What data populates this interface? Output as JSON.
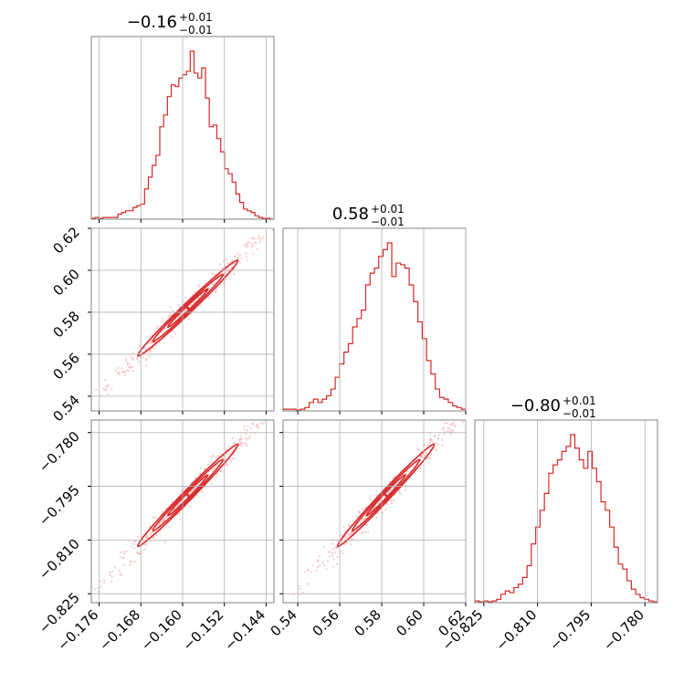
{
  "colors": {
    "series": "#d62728",
    "scatter": "#f4a3a4",
    "grid": "#b0b0b0",
    "frame": "#808080"
  },
  "chart_data": {
    "type": "corner",
    "grid": true,
    "parameters": [
      {
        "range": [
          -0.1775,
          -0.1425
        ],
        "ticks": [
          -0.176,
          -0.168,
          -0.16,
          -0.152,
          -0.144
        ],
        "tick_labels": [
          "−0.176",
          "−0.168",
          "−0.160",
          "−0.152",
          "−0.144"
        ],
        "title": {
          "main": "−0.16",
          "upper": "+0.01",
          "lower": "−0.01"
        }
      },
      {
        "range": [
          0.533,
          0.62
        ],
        "ticks": [
          0.54,
          0.56,
          0.58,
          0.6,
          0.62
        ],
        "tick_labels": [
          "0.54",
          "0.56",
          "0.58",
          "0.60",
          "0.62"
        ],
        "title": {
          "main": "0.58",
          "upper": "+0.01",
          "lower": "−0.01"
        }
      },
      {
        "range": [
          -0.8275,
          -0.7765
        ],
        "ticks": [
          -0.825,
          -0.81,
          -0.795,
          -0.78
        ],
        "tick_labels": [
          "−0.825",
          "−0.810",
          "−0.795",
          "−0.780"
        ],
        "title": {
          "main": "−0.80",
          "upper": "+0.01",
          "lower": "−0.01"
        }
      }
    ],
    "histograms": [
      [
        0.005,
        0.01,
        0.005,
        0.01,
        0.01,
        0.01,
        0.01,
        0.03,
        0.04,
        0.05,
        0.05,
        0.07,
        0.08,
        0.09,
        0.18,
        0.25,
        0.32,
        0.38,
        0.55,
        0.62,
        0.73,
        0.8,
        0.79,
        0.84,
        0.86,
        0.88,
        1.0,
        0.87,
        0.84,
        0.9,
        0.72,
        0.55,
        0.56,
        0.48,
        0.4,
        0.3,
        0.27,
        0.22,
        0.15,
        0.1,
        0.06,
        0.05,
        0.04,
        0.02,
        0.01,
        0.005,
        0.005,
        0.0
      ],
      [
        0.01,
        0.01,
        0.01,
        0.005,
        0.01,
        0.02,
        0.05,
        0.07,
        0.05,
        0.07,
        0.09,
        0.13,
        0.2,
        0.28,
        0.35,
        0.4,
        0.5,
        0.55,
        0.6,
        0.75,
        0.82,
        0.85,
        0.92,
        0.96,
        1.0,
        0.8,
        0.88,
        0.87,
        0.85,
        0.75,
        0.65,
        0.53,
        0.43,
        0.3,
        0.22,
        0.13,
        0.08,
        0.07,
        0.05,
        0.03,
        0.02,
        0.01
      ],
      [
        0.01,
        0.005,
        0.01,
        0.005,
        0.01,
        0.02,
        0.05,
        0.07,
        0.06,
        0.09,
        0.11,
        0.15,
        0.22,
        0.35,
        0.45,
        0.55,
        0.65,
        0.77,
        0.82,
        0.85,
        0.9,
        0.93,
        1.0,
        0.92,
        0.85,
        0.8,
        0.9,
        0.8,
        0.72,
        0.6,
        0.55,
        0.45,
        0.33,
        0.23,
        0.2,
        0.13,
        0.08,
        0.05,
        0.03,
        0.02,
        0.01,
        0.005
      ]
    ],
    "correlations": [
      {
        "x": 0,
        "y": 1,
        "center": [
          -0.159,
          0.582
        ],
        "sigma": [
          0.0048,
          0.0115
        ],
        "rho": 0.99
      },
      {
        "x": 0,
        "y": 2,
        "center": [
          -0.159,
          -0.7975
        ],
        "sigma": [
          0.0048,
          0.0072
        ],
        "rho": 0.99
      },
      {
        "x": 1,
        "y": 2,
        "center": [
          0.582,
          -0.7975
        ],
        "sigma": [
          0.0115,
          0.0072
        ],
        "rho": 0.99
      }
    ]
  }
}
